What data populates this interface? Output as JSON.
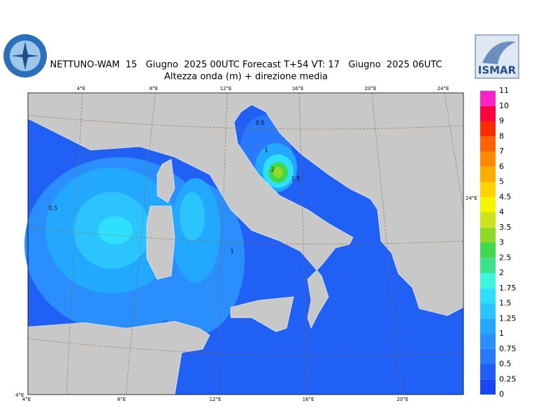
{
  "header": {
    "line1": "NETTUNO-WAM  15   Giugno  2025 00UTC Forecast T+54 VT: 17   Giugno  2025 06UTC",
    "line2": "Altezza onda (m) + direzione media",
    "logo_right": "ISMAR"
  },
  "colorbar": {
    "levels": [
      0,
      0.25,
      0.5,
      0.75,
      1,
      1.25,
      1.5,
      1.75,
      2,
      2.5,
      3,
      3.5,
      4,
      4.5,
      5,
      6,
      7,
      8,
      9,
      10,
      11
    ],
    "colors": [
      "#1747f5",
      "#1f5ef7",
      "#2a78fb",
      "#2a8ffc",
      "#22a8ff",
      "#2cc4ff",
      "#2ee0ff",
      "#3ef5e0",
      "#3ce28c",
      "#40d84c",
      "#8fd92a",
      "#cde31e",
      "#f5f500",
      "#ffd200",
      "#ffae00",
      "#ff8a00",
      "#ff6200",
      "#ff2a00",
      "#ff0040",
      "#ff22c8"
    ]
  },
  "map": {
    "top_labels": [
      "4°E",
      "8°E",
      "12°E",
      "16°E",
      "20°E",
      "24°E"
    ],
    "bottom_labels": [
      "4°E",
      "8°E",
      "12°E",
      "16°E",
      "20°E"
    ],
    "right_label": "24°E",
    "corner_label": "4°E",
    "contour_labels": [
      0.5,
      1,
      2,
      1.5,
      0.5,
      1
    ]
  }
}
